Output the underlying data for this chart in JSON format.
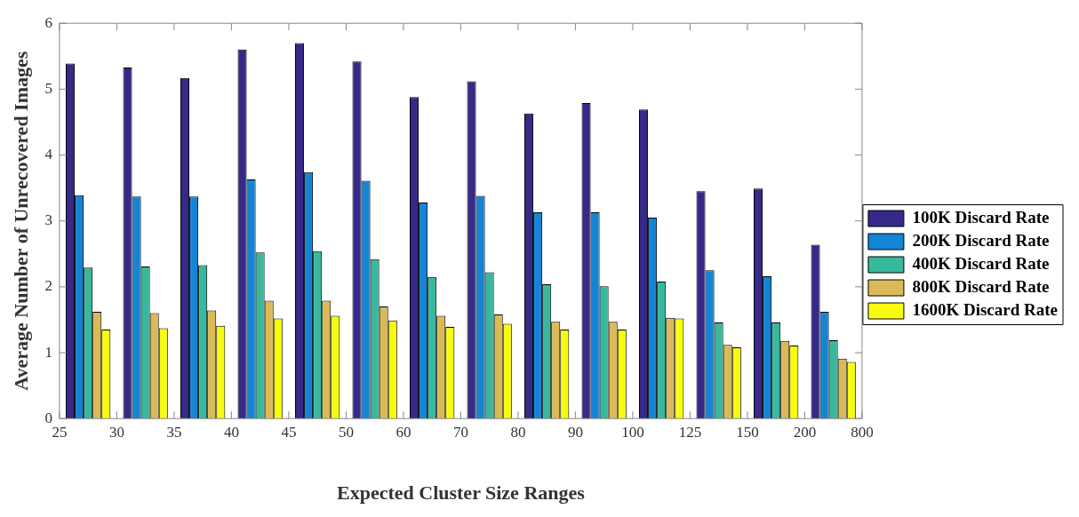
{
  "chart_data": {
    "type": "bar",
    "xlabel": "Expected Cluster Size Ranges",
    "ylabel": "Average Number of Unrecovered Images",
    "categories": [
      null,
      null,
      null,
      null,
      null,
      null,
      null,
      null,
      null,
      null,
      null,
      null,
      null,
      null
    ],
    "annotations": [
      "25",
      "30",
      "35",
      "40",
      "45",
      "50",
      "60",
      "70",
      "80",
      "90",
      "100",
      "125",
      "150",
      "200",
      "800"
    ],
    "ylim": [
      0,
      6
    ],
    "yticks": [
      0,
      1,
      2,
      3,
      4,
      5,
      6
    ],
    "series": [
      {
        "name": "100K Discard Rate",
        "color": "#352a87",
        "values": [
          5.39,
          5.33,
          5.17,
          5.6,
          5.7,
          5.42,
          4.88,
          5.12,
          4.63,
          4.79,
          4.69,
          3.45,
          3.49,
          2.64
        ]
      },
      {
        "name": "200K Discard Rate",
        "color": "#1485d4",
        "values": [
          3.39,
          3.37,
          3.37,
          3.63,
          3.74,
          3.61,
          3.28,
          3.38,
          3.13,
          3.13,
          3.05,
          2.25,
          2.16,
          1.62
        ]
      },
      {
        "name": "400K Discard Rate",
        "color": "#38b99e",
        "values": [
          2.29,
          2.31,
          2.33,
          2.52,
          2.54,
          2.42,
          2.15,
          2.22,
          2.04,
          2.01,
          2.08,
          1.46,
          1.46,
          1.19
        ]
      },
      {
        "name": "800K Discard Rate",
        "color": "#d9ba56",
        "values": [
          1.62,
          1.6,
          1.64,
          1.79,
          1.79,
          1.7,
          1.56,
          1.58,
          1.47,
          1.47,
          1.53,
          1.12,
          1.18,
          0.91
        ]
      },
      {
        "name": "1600K Discard Rate",
        "color": "#f9fb0e",
        "values": [
          1.35,
          1.37,
          1.41,
          1.52,
          1.56,
          1.49,
          1.39,
          1.44,
          1.35,
          1.35,
          1.52,
          1.08,
          1.11,
          0.86
        ]
      }
    ],
    "legend": "right"
  }
}
